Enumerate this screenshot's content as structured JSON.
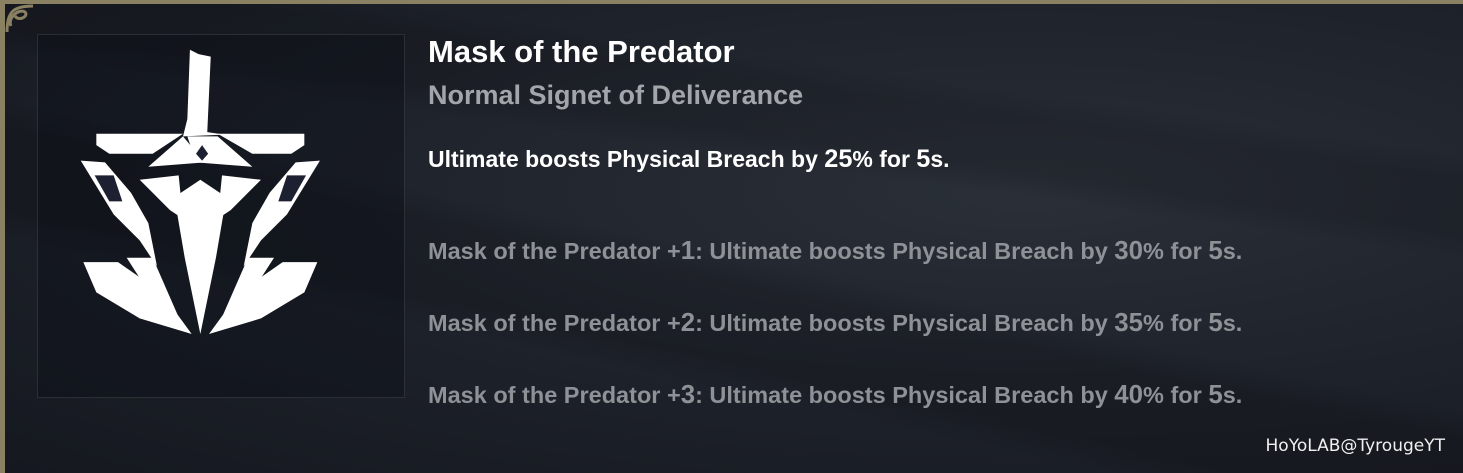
{
  "signet": {
    "name": "Mask of the Predator",
    "type": "Normal Signet of Deliverance",
    "icon": "predator-mask-emblem",
    "effect": {
      "pre": "Ultimate boosts Physical Breach by ",
      "v1": "25",
      "mid": "% for ",
      "v2": "5",
      "post": "s."
    },
    "levels": [
      {
        "name": "Mask of the Predator +",
        "lvl": "1",
        "pre": ": Ultimate boosts Physical Breach by ",
        "v1": "30",
        "mid": "% for ",
        "v2": "5",
        "post": "s."
      },
      {
        "name": "Mask of the Predator +",
        "lvl": "2",
        "pre": ": Ultimate boosts Physical Breach by ",
        "v1": "35",
        "mid": "% for ",
        "v2": "5",
        "post": "s."
      },
      {
        "name": "Mask of the Predator +",
        "lvl": "3",
        "pre": ": Ultimate boosts Physical Breach by ",
        "v1": "40",
        "mid": "% for ",
        "v2": "5",
        "post": "s."
      }
    ]
  },
  "watermark": "HoYoLAB@TyrougeYT",
  "colors": {
    "border": "#8a8062",
    "title": "#ffffff",
    "subtitle": "#a2a5aa",
    "level_text": "#8e9196"
  }
}
